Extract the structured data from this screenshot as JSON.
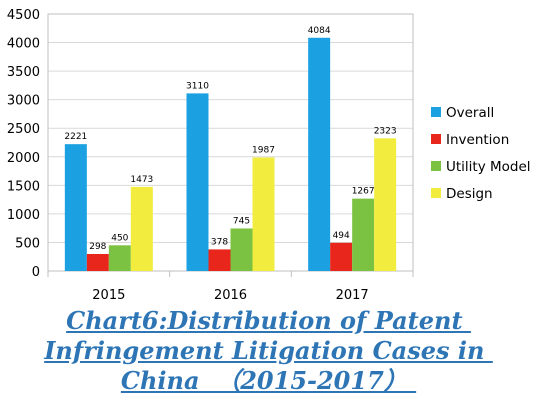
{
  "chart_data": {
    "type": "bar",
    "categories": [
      "2015",
      "2016",
      "2017"
    ],
    "series": [
      {
        "name": "Overall",
        "color": "#1ba1e2",
        "values": [
          2221,
          3110,
          4084
        ]
      },
      {
        "name": "Invention",
        "color": "#e8261c",
        "values": [
          298,
          378,
          494
        ]
      },
      {
        "name": "Utility Model",
        "color": "#7cc242",
        "values": [
          450,
          745,
          1267
        ]
      },
      {
        "name": "Design",
        "color": "#f2ec3e",
        "values": [
          1473,
          1987,
          2323
        ]
      }
    ],
    "ylim": [
      0,
      4500
    ],
    "yticks": [
      0,
      500,
      1000,
      1500,
      2000,
      2500,
      3000,
      3500,
      4000,
      4500
    ],
    "grid": true,
    "legend_position": "right"
  },
  "caption": {
    "line1": "Chart6:Distribution of Patent ",
    "line2": "Infringement Litigation Cases in ",
    "line3": "China  （2015-2017） ",
    "color": "#2e75b6"
  }
}
